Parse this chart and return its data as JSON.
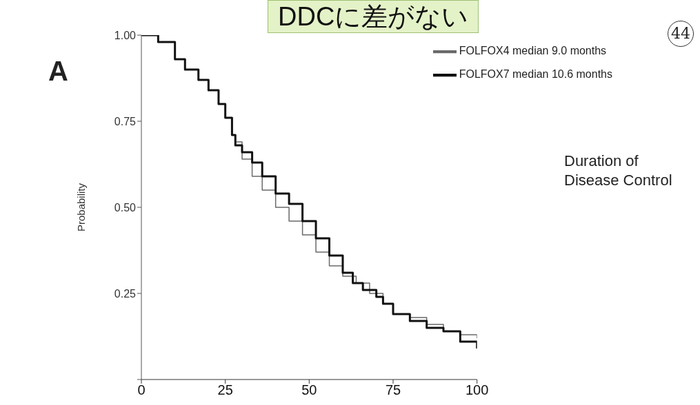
{
  "chart_data": {
    "type": "step",
    "title": "DDCに差がない",
    "ylabel": "Probability",
    "annotations": [
      "A",
      "Duration of\nDisease Control",
      "44"
    ],
    "xlim": [
      0,
      100
    ],
    "xticks": [
      0,
      25,
      50,
      75,
      100
    ],
    "ylim": [
      0,
      1
    ],
    "yticks": [
      {
        "value": 0,
        "label": null
      },
      {
        "value": 0.25,
        "label": "0.25"
      },
      {
        "value": 0.5,
        "label": "0.50"
      },
      {
        "value": 0.75,
        "label": "0.75"
      },
      {
        "value": 1,
        "label": "1.00"
      }
    ],
    "grid": false,
    "legend": "top right",
    "marker": "none",
    "line_style": "solid",
    "series": [
      {
        "name": "FOLFOX4 median 9.0 months",
        "color": "#6a6a6a",
        "x": [
          0,
          5,
          10,
          13,
          17,
          20,
          23,
          25,
          27,
          28,
          30,
          33,
          36,
          40,
          44,
          48,
          52,
          56,
          60,
          64,
          68,
          72,
          75,
          80,
          85,
          90,
          95,
          100
        ],
        "values": [
          1,
          0.98,
          0.93,
          0.9,
          0.87,
          0.84,
          0.8,
          0.76,
          0.71,
          0.69,
          0.64,
          0.59,
          0.55,
          0.5,
          0.46,
          0.42,
          0.37,
          0.33,
          0.3,
          0.28,
          0.25,
          0.22,
          0.19,
          0.18,
          0.16,
          0.14,
          0.13,
          0.12
        ]
      },
      {
        "name": "FOLFOX7 median 10.6 months",
        "color": "#111111",
        "x": [
          0,
          5,
          10,
          13,
          17,
          20,
          23,
          25,
          27,
          28,
          30,
          33,
          36,
          40,
          44,
          48,
          52,
          56,
          60,
          63,
          66,
          70,
          72,
          75,
          80,
          85,
          90,
          95,
          100
        ],
        "values": [
          1,
          0.98,
          0.93,
          0.9,
          0.87,
          0.84,
          0.8,
          0.76,
          0.71,
          0.68,
          0.66,
          0.63,
          0.59,
          0.54,
          0.51,
          0.46,
          0.41,
          0.36,
          0.31,
          0.28,
          0.26,
          0.24,
          0.22,
          0.19,
          0.17,
          0.15,
          0.14,
          0.11,
          0.09
        ]
      }
    ]
  }
}
